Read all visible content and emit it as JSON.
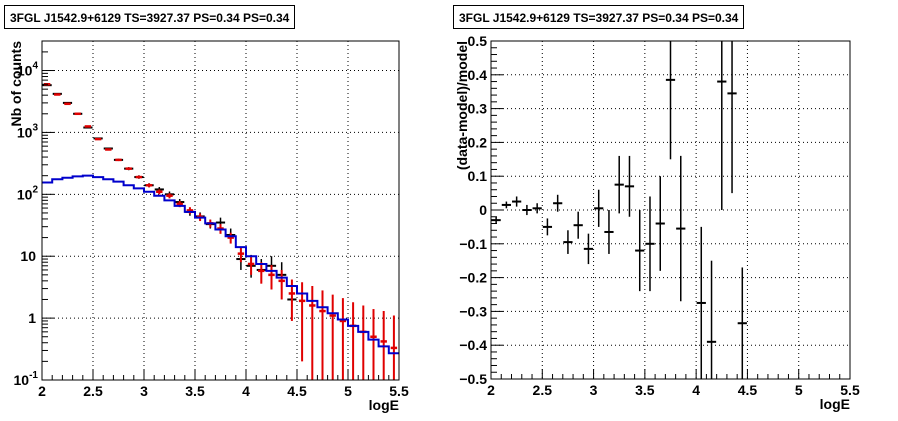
{
  "chart_data": [
    {
      "type": "scatter",
      "title": "3FGL J1542.9+6129 TS=3927.37 PS=0.34 PS=0.34",
      "xlabel": "logE",
      "ylabel": "Nb of counts",
      "xlim": [
        2,
        5.5
      ],
      "ylim": [
        0.1,
        30000
      ],
      "yscale": "log",
      "grid": true,
      "x_ticks": [
        "2",
        "2.5",
        "3",
        "3.5",
        "4",
        "4.5",
        "5",
        "5.5"
      ],
      "y_ticks": [
        {
          "value": 0.1,
          "label": "10",
          "exp": "-1"
        },
        {
          "value": 1,
          "label": "1",
          "exp": ""
        },
        {
          "value": 10,
          "label": "10",
          "exp": ""
        },
        {
          "value": 100,
          "label": "10",
          "exp": "2"
        },
        {
          "value": 1000,
          "label": "10",
          "exp": "3"
        },
        {
          "value": 10000,
          "label": "10",
          "exp": "4"
        }
      ],
      "series": [
        {
          "kind": "points",
          "color": "#000000",
          "x": [
            2.05,
            2.15,
            2.25,
            2.35,
            2.45,
            2.55,
            2.65,
            2.75,
            2.85,
            2.95,
            3.05,
            3.15,
            3.25,
            3.35,
            3.45,
            3.55,
            3.65,
            3.75,
            3.85,
            3.95,
            4.05,
            4.15,
            4.25,
            4.35,
            4.45
          ],
          "y": [
            5800,
            4200,
            3000,
            2000,
            1200,
            800,
            550,
            360,
            260,
            190,
            140,
            120,
            100,
            75,
            52,
            44,
            33,
            35,
            22,
            9,
            7,
            6,
            7,
            5,
            2
          ],
          "err_low": [
            5700,
            4100,
            2950,
            1960,
            1170,
            780,
            530,
            345,
            245,
            178,
            130,
            110,
            90,
            67,
            45,
            38,
            28,
            29,
            17,
            6,
            4.5,
            3.8,
            4.4,
            3,
            1.5
          ],
          "err_high": [
            5900,
            4300,
            3050,
            2040,
            1230,
            820,
            570,
            375,
            275,
            203,
            151,
            131,
            111,
            84,
            60,
            51,
            39,
            42,
            28,
            12.5,
            10.5,
            9,
            10,
            8,
            3.3
          ]
        },
        {
          "kind": "model_bars",
          "color": "#e00000",
          "x": [
            2.05,
            2.15,
            2.25,
            2.35,
            2.45,
            2.55,
            2.65,
            2.75,
            2.85,
            2.95,
            3.05,
            3.15,
            3.25,
            3.35,
            3.45,
            3.55,
            3.65,
            3.75,
            3.85,
            3.95,
            4.05,
            4.15,
            4.25,
            4.35,
            4.45,
            4.55,
            4.65,
            4.75,
            4.85,
            4.95,
            5.05,
            5.15,
            5.25,
            5.35,
            5.45
          ],
          "y": [
            6000,
            4100,
            2900,
            2000,
            1250,
            780,
            530,
            360,
            260,
            190,
            140,
            110,
            95,
            70,
            55,
            43,
            34,
            28,
            20,
            11,
            7.5,
            5.8,
            5,
            4,
            2.5,
            1.9,
            1.6,
            1.3,
            1.1,
            0.9,
            0.75,
            0.6,
            0.5,
            0.42,
            0.33
          ],
          "err_low": [
            5920,
            4040,
            2850,
            1960,
            1220,
            760,
            510,
            345,
            248,
            180,
            130,
            100,
            86,
            62,
            48,
            37,
            29,
            23,
            16,
            8,
            5,
            3.6,
            2.9,
            2,
            0.9,
            0.2,
            0.1,
            0.1,
            0.1,
            0.1,
            0.1,
            0.1,
            0.1,
            0.1,
            0.1
          ],
          "err_high": [
            6080,
            4160,
            2950,
            2040,
            1280,
            800,
            550,
            375,
            272,
            200,
            150,
            120,
            104,
            78,
            62,
            49,
            39,
            33,
            24,
            14,
            10,
            8,
            7.2,
            6,
            4.2,
            3.8,
            3.3,
            2.8,
            2.4,
            2.1,
            1.8,
            1.6,
            1.4,
            1.3,
            1.1
          ]
        },
        {
          "kind": "step",
          "color": "#0000cc",
          "edges": [
            2.0,
            2.1,
            2.2,
            2.3,
            2.4,
            2.5,
            2.6,
            2.7,
            2.8,
            2.9,
            3.0,
            3.1,
            3.2,
            3.3,
            3.4,
            3.5,
            3.6,
            3.7,
            3.8,
            3.9,
            4.0,
            4.1,
            4.2,
            4.3,
            4.4,
            4.5,
            4.6,
            4.7,
            4.8,
            4.9,
            5.0,
            5.1,
            5.2,
            5.3,
            5.4,
            5.5
          ],
          "y": [
            155,
            175,
            185,
            195,
            200,
            190,
            175,
            160,
            140,
            125,
            110,
            95,
            80,
            65,
            52,
            42,
            34,
            27,
            21,
            14,
            10,
            7.5,
            5.8,
            4.5,
            3.3,
            2.5,
            1.9,
            1.5,
            1.2,
            0.95,
            0.75,
            0.6,
            0.45,
            0.35,
            0.27
          ]
        }
      ]
    },
    {
      "type": "scatter",
      "title": "3FGL J1542.9+6129 TS=3927.37 PS=0.34 PS=0.34",
      "xlabel": "logE",
      "ylabel": "(data-model)/model",
      "xlim": [
        2,
        5.5
      ],
      "ylim": [
        -0.5,
        0.5
      ],
      "grid": true,
      "x_ticks": [
        "2",
        "2.5",
        "3",
        "3.5",
        "4",
        "4.5",
        "5",
        "5.5"
      ],
      "y_ticks": [
        "−0.5",
        "−0.4",
        "−0.3",
        "−0.2",
        "−0.1",
        "0",
        "0.1",
        "0.2",
        "0.3",
        "0.4",
        "0.5"
      ],
      "series": [
        {
          "kind": "points",
          "color": "#000000",
          "x": [
            2.05,
            2.15,
            2.25,
            2.35,
            2.45,
            2.55,
            2.65,
            2.75,
            2.85,
            2.95,
            3.05,
            3.15,
            3.25,
            3.35,
            3.45,
            3.55,
            3.65,
            3.75,
            3.85,
            4.05,
            4.15,
            4.25,
            4.35,
            4.45
          ],
          "y": [
            -0.03,
            0.015,
            0.025,
            0.0,
            0.005,
            -0.05,
            0.02,
            -0.095,
            -0.045,
            -0.115,
            0.005,
            -0.065,
            0.075,
            0.07,
            -0.12,
            -0.1,
            -0.04,
            0.385,
            -0.055,
            -0.275,
            -0.39,
            0.38,
            0.345,
            -0.335
          ],
          "err_low": [
            -0.04,
            0.005,
            0.01,
            -0.015,
            -0.01,
            -0.075,
            -0.005,
            -0.13,
            -0.085,
            -0.16,
            -0.05,
            -0.13,
            -0.01,
            -0.02,
            -0.24,
            -0.24,
            -0.18,
            0.15,
            -0.27,
            -0.5,
            -0.5,
            0.0,
            0.05,
            -0.5
          ],
          "err_high": [
            -0.02,
            0.025,
            0.04,
            0.015,
            0.02,
            -0.025,
            0.045,
            -0.06,
            -0.005,
            -0.07,
            0.06,
            0.0,
            0.16,
            0.16,
            0.0,
            0.04,
            0.1,
            0.5,
            0.16,
            -0.05,
            -0.15,
            0.5,
            0.5,
            -0.17
          ]
        }
      ]
    }
  ]
}
